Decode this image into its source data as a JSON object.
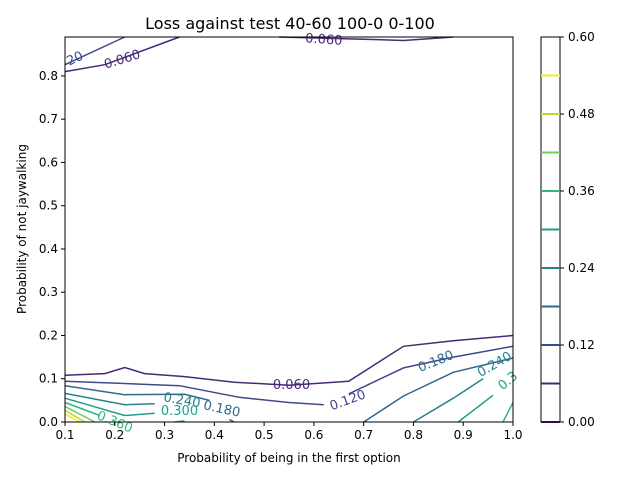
{
  "chart_data": {
    "type": "contour",
    "title": "Loss against test 40-60 100-0 0-100",
    "xlabel": "Probability of being in the first option",
    "ylabel": "Probability of not jaywalking",
    "xlim": [
      0.1,
      1.0
    ],
    "ylim": [
      0.0,
      0.89
    ],
    "x_ticks": [
      "0.1",
      "0.2",
      "0.3",
      "0.4",
      "0.5",
      "0.6",
      "0.7",
      "0.8",
      "0.9",
      "1.0"
    ],
    "y_ticks": [
      "0.0",
      "0.1",
      "0.2",
      "0.3",
      "0.4",
      "0.5",
      "0.6",
      "0.7",
      "0.8"
    ],
    "colorbar": {
      "range": [
        0.0,
        0.6
      ],
      "ticks": [
        "0.00",
        "0.12",
        "0.24",
        "0.36",
        "0.48",
        "0.60"
      ],
      "levels": [
        {
          "value": 0.0,
          "color": "#440154"
        },
        {
          "value": 0.06,
          "color": "#482878"
        },
        {
          "value": 0.12,
          "color": "#3e4989"
        },
        {
          "value": 0.18,
          "color": "#31688e"
        },
        {
          "value": 0.24,
          "color": "#26828e"
        },
        {
          "value": 0.3,
          "color": "#1f9e89"
        },
        {
          "value": 0.36,
          "color": "#35b779"
        },
        {
          "value": 0.42,
          "color": "#6ece58"
        },
        {
          "value": 0.48,
          "color": "#b5de2b"
        },
        {
          "value": 0.54,
          "color": "#fde725"
        }
      ]
    },
    "contours": [
      {
        "level": 0.06,
        "points": [
          [
            0.1,
            0.81
          ],
          [
            0.18,
            0.826
          ],
          [
            0.33,
            0.89
          ]
        ]
      },
      {
        "level": 0.06,
        "points": [
          [
            0.53,
            0.89
          ],
          [
            0.7,
            0.885
          ],
          [
            0.78,
            0.882
          ],
          [
            0.88,
            0.89
          ]
        ]
      },
      {
        "level": 0.12,
        "points": [
          [
            0.1,
            0.826
          ],
          [
            0.22,
            0.89
          ]
        ]
      },
      {
        "level": 0.06,
        "points": [
          [
            0.1,
            0.108
          ],
          [
            0.18,
            0.112
          ],
          [
            0.22,
            0.126
          ],
          [
            0.26,
            0.112
          ],
          [
            0.34,
            0.105
          ],
          [
            0.44,
            0.092
          ],
          [
            0.55,
            0.085
          ],
          [
            0.67,
            0.094
          ],
          [
            0.78,
            0.175
          ],
          [
            0.88,
            0.188
          ],
          [
            1.0,
            0.2
          ]
        ]
      },
      {
        "level": 0.12,
        "points": [
          [
            0.1,
            0.094
          ],
          [
            0.22,
            0.089
          ],
          [
            0.33,
            0.084
          ],
          [
            0.45,
            0.057
          ],
          [
            0.55,
            0.045
          ],
          [
            0.62,
            0.04
          ]
        ]
      },
      {
        "level": 0.12,
        "points": [
          [
            0.67,
            0.065
          ],
          [
            0.78,
            0.125
          ],
          [
            0.88,
            0.15
          ],
          [
            1.0,
            0.175
          ]
        ]
      },
      {
        "level": 0.18,
        "points": [
          [
            0.1,
            0.084
          ],
          [
            0.22,
            0.063
          ],
          [
            0.34,
            0.064
          ],
          [
            0.39,
            0.05
          ]
        ]
      },
      {
        "level": 0.18,
        "points": [
          [
            0.44,
            0.0
          ],
          [
            0.43,
            0.006
          ]
        ]
      },
      {
        "level": 0.18,
        "points": [
          [
            0.7,
            0.0
          ],
          [
            0.78,
            0.06
          ],
          [
            0.88,
            0.115
          ],
          [
            1.0,
            0.148
          ]
        ]
      },
      {
        "level": 0.24,
        "points": [
          [
            0.1,
            0.066
          ],
          [
            0.22,
            0.04
          ],
          [
            0.28,
            0.042
          ]
        ]
      },
      {
        "level": 0.24,
        "points": [
          [
            0.8,
            0.0
          ],
          [
            0.88,
            0.055
          ],
          [
            0.94,
            0.1
          ]
        ]
      },
      {
        "level": 0.3,
        "points": [
          [
            0.1,
            0.055
          ],
          [
            0.22,
            0.015
          ],
          [
            0.28,
            0.02
          ]
        ]
      },
      {
        "level": 0.3,
        "points": [
          [
            0.89,
            0.0
          ],
          [
            0.96,
            0.062
          ]
        ]
      },
      {
        "level": 0.36,
        "points": [
          [
            0.1,
            0.045
          ],
          [
            0.17,
            0.015
          ]
        ]
      },
      {
        "level": 0.36,
        "points": [
          [
            0.32,
            0.0
          ],
          [
            0.34,
            0.003
          ]
        ]
      },
      {
        "level": 0.36,
        "points": [
          [
            0.98,
            0.0
          ],
          [
            1.0,
            0.045
          ]
        ]
      },
      {
        "level": 0.42,
        "points": [
          [
            0.1,
            0.036
          ],
          [
            0.16,
            0.0
          ]
        ]
      },
      {
        "level": 0.48,
        "points": [
          [
            0.1,
            0.027
          ],
          [
            0.14,
            0.0
          ]
        ]
      },
      {
        "level": 0.54,
        "points": [
          [
            0.1,
            0.018
          ],
          [
            0.13,
            0.0
          ]
        ]
      }
    ],
    "contour_labels": [
      {
        "text": "0.060",
        "x": 0.215,
        "y": 0.838,
        "rotate": -17,
        "color": "#482878"
      },
      {
        "text": "0.060",
        "x": 0.62,
        "y": 0.884,
        "rotate": 4,
        "color": "#482878"
      },
      {
        "text": "20",
        "x": 0.12,
        "y": 0.84,
        "rotate": -25,
        "color": "#3e4989"
      },
      {
        "text": "0.060",
        "x": 0.555,
        "y": 0.085,
        "rotate": 0,
        "color": "#482878"
      },
      {
        "text": "0.120",
        "x": 0.668,
        "y": 0.05,
        "rotate": -20,
        "color": "#3e4989"
      },
      {
        "text": "0.180",
        "x": 0.845,
        "y": 0.14,
        "rotate": -22,
        "color": "#31688e"
      },
      {
        "text": "0.180",
        "x": 0.415,
        "y": 0.03,
        "rotate": 12,
        "color": "#31688e"
      },
      {
        "text": "0.240",
        "x": 0.335,
        "y": 0.05,
        "rotate": 10,
        "color": "#26828e"
      },
      {
        "text": "0.240",
        "x": 0.963,
        "y": 0.133,
        "rotate": -30,
        "color": "#26828e"
      },
      {
        "text": "0.300",
        "x": 0.33,
        "y": 0.026,
        "rotate": 0,
        "color": "#1f9e89"
      },
      {
        "text": "0.3",
        "x": 0.99,
        "y": 0.095,
        "rotate": -40,
        "color": "#1f9e89"
      },
      {
        "text": "0.360",
        "x": 0.2,
        "y": 0.0,
        "rotate": 22,
        "color": "#35b779"
      }
    ]
  }
}
